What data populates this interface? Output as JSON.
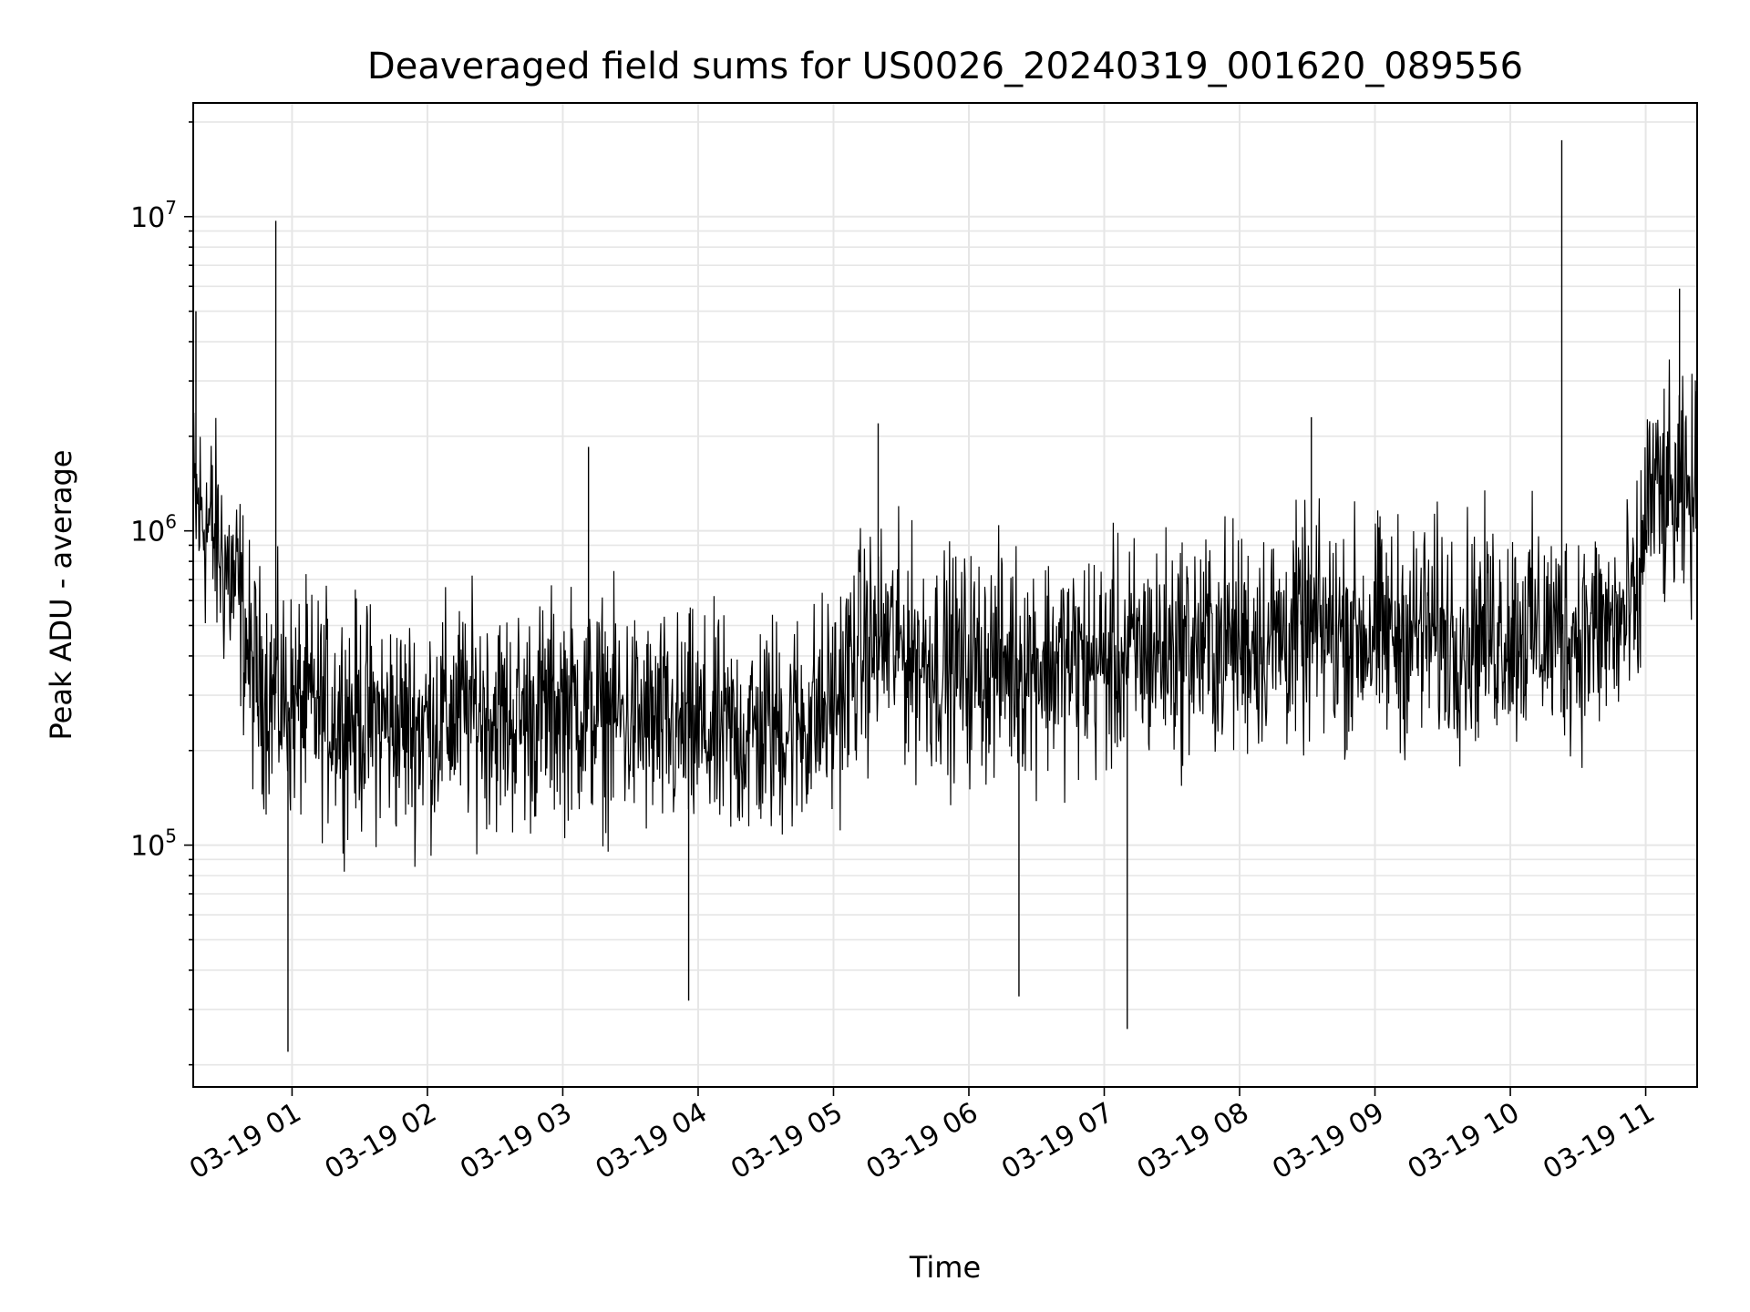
{
  "chart_data": {
    "type": "line",
    "title": "Deaveraged field sums for US0026_20240319_001620_089556",
    "xlabel": "Time",
    "ylabel": "Peak ADU - average",
    "yscale": "log",
    "ylim": [
      17000,
      23000000
    ],
    "xlim_hours": [
      0.27,
      11.38
    ],
    "x_ticks": [
      {
        "label": "03-19 01",
        "hour": 1
      },
      {
        "label": "03-19 02",
        "hour": 2
      },
      {
        "label": "03-19 03",
        "hour": 3
      },
      {
        "label": "03-19 04",
        "hour": 4
      },
      {
        "label": "03-19 05",
        "hour": 5
      },
      {
        "label": "03-19 06",
        "hour": 6
      },
      {
        "label": "03-19 07",
        "hour": 7
      },
      {
        "label": "03-19 08",
        "hour": 8
      },
      {
        "label": "03-19 09",
        "hour": 9
      },
      {
        "label": "03-19 10",
        "hour": 10
      },
      {
        "label": "03-19 11",
        "hour": 11
      }
    ],
    "y_ticks": [
      {
        "base": "10",
        "exp": "5",
        "value": 100000
      },
      {
        "base": "10",
        "exp": "6",
        "value": 1000000
      },
      {
        "base": "10",
        "exp": "7",
        "value": 10000000
      }
    ],
    "grid": true,
    "line_color": "#000000",
    "grid_color": "#e6e6e6",
    "series": [
      {
        "x": [
          0.27,
          0.35,
          0.45,
          0.55,
          0.62,
          0.7,
          0.8,
          0.9,
          1.0,
          1.2,
          1.4,
          1.6,
          1.8,
          2.0,
          2.2,
          2.4,
          2.6,
          2.8,
          3.0,
          3.2,
          3.4,
          3.6,
          3.8,
          4.0,
          4.2,
          4.4,
          4.6,
          4.8,
          5.0,
          5.2,
          5.4,
          5.6,
          5.8,
          6.0,
          6.2,
          6.4,
          6.6,
          6.8,
          7.0,
          7.2,
          7.4,
          7.6,
          7.8,
          8.0,
          8.2,
          8.4,
          8.6,
          8.8,
          9.0,
          9.2,
          9.4,
          9.6,
          9.8,
          10.0,
          10.2,
          10.4,
          10.6,
          10.8,
          10.95,
          11.0,
          11.1,
          11.2,
          11.3,
          11.38
        ],
        "y": [
          1200000,
          1100000,
          900000,
          700000,
          600000,
          350000,
          320000,
          300000,
          280000,
          270000,
          260000,
          250000,
          240000,
          245000,
          260000,
          270000,
          250000,
          260000,
          280000,
          270000,
          260000,
          240000,
          230000,
          230000,
          220000,
          230000,
          240000,
          250000,
          280000,
          420000,
          450000,
          400000,
          380000,
          370000,
          380000,
          390000,
          380000,
          380000,
          380000,
          400000,
          420000,
          430000,
          440000,
          450000,
          460000,
          470000,
          480000,
          480000,
          470000,
          470000,
          480000,
          470000,
          480000,
          490000,
          480000,
          470000,
          480000,
          500000,
          550000,
          1300000,
          1300000,
          1200000,
          1250000,
          1300000
        ],
        "spikes": [
          {
            "x": 0.29,
            "y": 5000000
          },
          {
            "x": 0.88,
            "y": 9700000
          },
          {
            "x": 0.97,
            "y": 22000
          },
          {
            "x": 3.19,
            "y": 1850000
          },
          {
            "x": 3.93,
            "y": 32000
          },
          {
            "x": 5.33,
            "y": 2200000
          },
          {
            "x": 6.37,
            "y": 33000
          },
          {
            "x": 7.17,
            "y": 26000
          },
          {
            "x": 8.53,
            "y": 2300000
          },
          {
            "x": 10.38,
            "y": 17500000
          },
          {
            "x": 11.25,
            "y": 5900000
          }
        ]
      }
    ]
  }
}
